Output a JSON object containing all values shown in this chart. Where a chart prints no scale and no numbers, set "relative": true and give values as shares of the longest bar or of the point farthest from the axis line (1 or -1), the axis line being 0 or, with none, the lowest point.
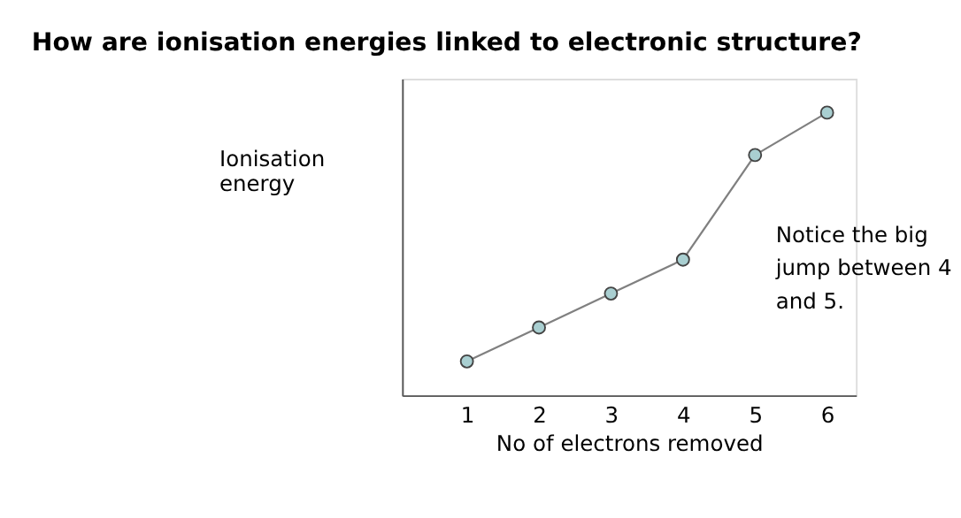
{
  "chart_data": {
    "type": "line",
    "title": "How are ionisation energies linked to electronic structure?",
    "xlabel": "No of electrons removed",
    "ylabel": "Ionisation energy",
    "categories": [
      "1",
      "2",
      "3",
      "4",
      "5",
      "6"
    ],
    "series": [
      {
        "color": "#808080",
        "values": [
          0.12,
          0.24,
          0.36,
          0.48,
          0.85,
          1.0
        ]
      }
    ],
    "relative": true,
    "marker": "circle",
    "grid": false,
    "annotations": [
      "Notice the big jump between 4 and 5."
    ]
  }
}
